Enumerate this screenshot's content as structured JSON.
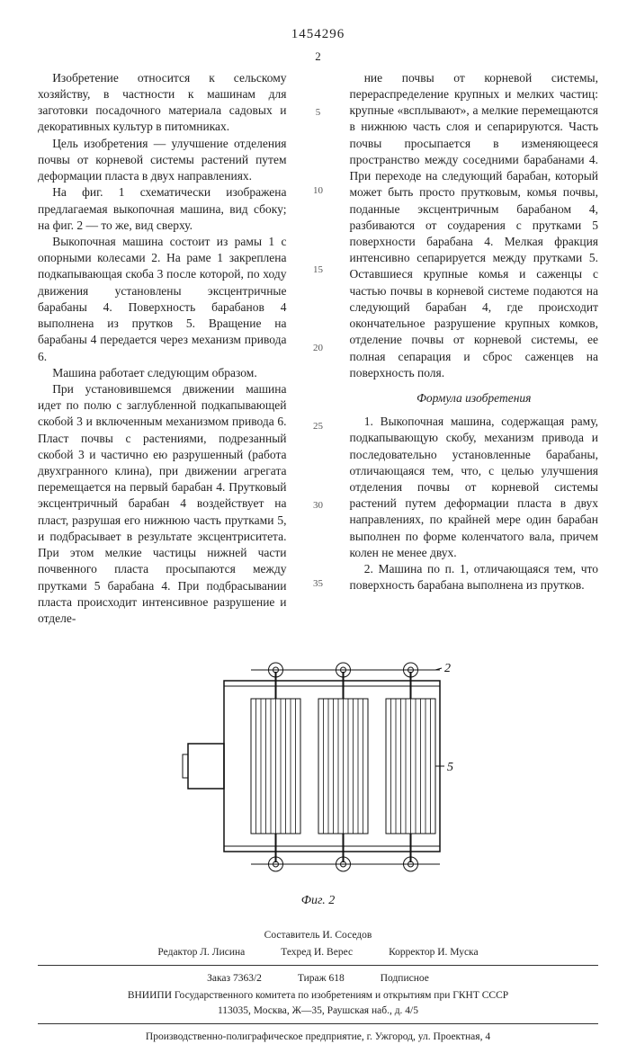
{
  "patent_no": "1454296",
  "page_no": "2",
  "gutter_marks": [
    "5",
    "10",
    "15",
    "20",
    "25",
    "30",
    "35"
  ],
  "left_paragraphs": [
    "Изобретение относится к сельскому хозяйству, в частности к машинам для заготовки посадочного материала садовых и декоративных культур в питомниках.",
    "Цель изобретения — улучшение отделения почвы от корневой системы растений путем деформации пласта в двух направлениях.",
    "На фиг. 1 схематически изображена предлагаемая выкопочная машина, вид сбоку; на фиг. 2 — то же, вид сверху.",
    "Выкопочная машина состоит из рамы 1 с опорными колесами 2. На раме 1 закреплена подкапывающая скоба 3 после которой, по ходу движения установлены эксцентричные барабаны 4. Поверхность барабанов 4 выполнена из прутков 5. Вращение на барабаны 4 передается через механизм привода 6.",
    "Машина работает следующим образом.",
    "При установившемся движении машина идет по полю с заглубленной подкапывающей скобой 3 и включенным механизмом привода 6. Пласт почвы с растениями, подрезанный скобой 3 и частично ею разрушенный (работа двухгранного клина), при движении агрегата перемещается на первый барабан 4. Прутковый эксцентричный барабан 4 воздействует на пласт, разрушая его нижнюю часть прутками 5, и подбрасывает в результате эксцентриситета. При этом мелкие частицы нижней части почвенного пласта просыпаются между прутками 5 барабана 4. При подбрасывании пласта происходит интенсивное разрушение и отделе-"
  ],
  "right_top_paragraphs": [
    "ние почвы от корневой системы, перераспределение крупных и мелких частиц: крупные «всплывают», а мелкие перемещаются в нижнюю часть слоя и сепарируются. Часть почвы просыпается в изменяющееся пространство между соседними барабанами 4. При переходе на следующий барабан, который может быть просто прутковым, комья почвы, поданные эксцентричным барабаном 4, разбиваются от соударения с прутками 5 поверхности барабана 4. Мелкая фракция интенсивно сепарируется между прутками 5. Оставшиеся крупные комья и саженцы с частью почвы в корневой системе подаются на следующий барабан 4, где происходит окончательное разрушение крупных комков, отделение почвы от корневой системы, ее полная сепарация и сброс саженцев на поверхность поля."
  ],
  "formula_title": "Формула изобретения",
  "claims": [
    "1. Выкопочная машина, содержащая раму, подкапывающую скобу, механизм привода и последовательно установленные барабаны, отличающаяся тем, что, с целью улучшения отделения почвы от корневой системы растений путем деформации пласта в двух направлениях, по крайней мере один барабан выполнен по форме коленчатого вала, причем колен не менее двух.",
    "2. Машина по п. 1, отличающаяся тем, что поверхность барабана выполнена из прутков."
  ],
  "figure": {
    "caption": "Фиг. 2",
    "label2": "2",
    "label5": "5",
    "stroke": "#111",
    "bar_fill": "none",
    "n_bars": 10
  },
  "footer": {
    "compiler": "Составитель И. Соседов",
    "editor": "Редактор Л. Лисина",
    "tech": "Техред И. Верес",
    "proof": "Корректор И. Муска",
    "order": "Заказ 7363/2",
    "tirazh": "Тираж 618",
    "subscr": "Подписное",
    "org1": "ВНИИПИ Государственного комитета по изобретениям и открытиям при ГКНТ СССР",
    "addr1": "113035, Москва, Ж—35, Раушская наб., д. 4/5",
    "org2": "Производственно-полиграфическое предприятие, г. Ужгород, ул. Проектная, 4"
  }
}
